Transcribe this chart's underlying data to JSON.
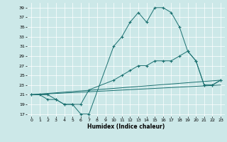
{
  "xlabel": "Humidex (Indice chaleur)",
  "background_color": "#cce8e8",
  "grid_color": "#ffffff",
  "line_color": "#1a7070",
  "xlim": [
    -0.5,
    23.5
  ],
  "ylim": [
    16.5,
    40
  ],
  "yticks": [
    17,
    19,
    21,
    23,
    25,
    27,
    29,
    31,
    33,
    35,
    37,
    39
  ],
  "xticks": [
    0,
    1,
    2,
    3,
    4,
    5,
    6,
    7,
    8,
    9,
    10,
    11,
    12,
    13,
    14,
    15,
    16,
    17,
    18,
    19,
    20,
    21,
    22,
    23
  ],
  "line1": {
    "x": [
      0,
      1,
      2,
      3,
      4,
      5,
      6,
      7,
      10,
      11,
      12,
      13,
      14,
      15,
      16,
      17,
      18,
      19,
      20,
      21,
      22,
      23
    ],
    "y": [
      21,
      21,
      20,
      20,
      19,
      19,
      17,
      17,
      31,
      33,
      36,
      38,
      36,
      39,
      39,
      38,
      35,
      30,
      28,
      23,
      23,
      24
    ]
  },
  "line2": {
    "x": [
      0,
      2,
      3,
      4,
      5,
      6,
      7,
      10,
      11,
      12,
      13,
      14,
      15,
      16,
      17,
      18,
      19,
      20,
      21,
      22,
      23
    ],
    "y": [
      21,
      21,
      20,
      19,
      19,
      19,
      22,
      24,
      25,
      26,
      27,
      27,
      28,
      28,
      28,
      29,
      30,
      28,
      23,
      23,
      24
    ]
  },
  "line3": {
    "x": [
      0,
      23
    ],
    "y": [
      21,
      24
    ]
  },
  "line4": {
    "x": [
      0,
      23
    ],
    "y": [
      21,
      23
    ]
  }
}
